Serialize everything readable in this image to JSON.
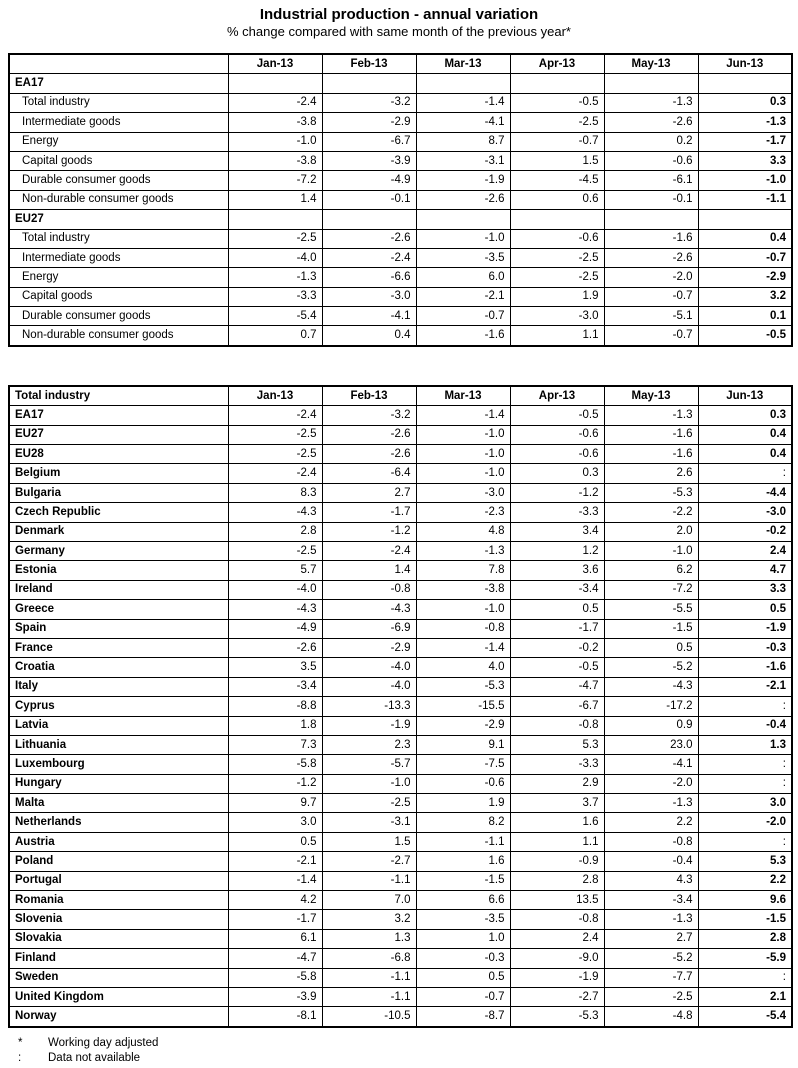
{
  "title": "Industrial production - annual variation",
  "subtitle": "% change compared with same month of the previous year*",
  "months": [
    "Jan-13",
    "Feb-13",
    "Mar-13",
    "Apr-13",
    "May-13",
    "Jun-13"
  ],
  "table1": {
    "sections": [
      {
        "label": "EA17",
        "rows": [
          {
            "label": "Total industry",
            "values": [
              "-2.4",
              "-3.2",
              "-1.4",
              "-0.5",
              "-1.3",
              "0.3"
            ]
          },
          {
            "label": "Intermediate goods",
            "values": [
              "-3.8",
              "-2.9",
              "-4.1",
              "-2.5",
              "-2.6",
              "-1.3"
            ]
          },
          {
            "label": "Energy",
            "values": [
              "-1.0",
              "-6.7",
              "8.7",
              "-0.7",
              "0.2",
              "-1.7"
            ]
          },
          {
            "label": "Capital goods",
            "values": [
              "-3.8",
              "-3.9",
              "-3.1",
              "1.5",
              "-0.6",
              "3.3"
            ]
          },
          {
            "label": "Durable consumer goods",
            "values": [
              "-7.2",
              "-4.9",
              "-1.9",
              "-4.5",
              "-6.1",
              "-1.0"
            ]
          },
          {
            "label": "Non-durable consumer goods",
            "values": [
              "1.4",
              "-0.1",
              "-2.6",
              "0.6",
              "-0.1",
              "-1.1"
            ]
          }
        ]
      },
      {
        "label": "EU27",
        "rows": [
          {
            "label": "Total industry",
            "values": [
              "-2.5",
              "-2.6",
              "-1.0",
              "-0.6",
              "-1.6",
              "0.4"
            ]
          },
          {
            "label": "Intermediate goods",
            "values": [
              "-4.0",
              "-2.4",
              "-3.5",
              "-2.5",
              "-2.6",
              "-0.7"
            ]
          },
          {
            "label": "Energy",
            "values": [
              "-1.3",
              "-6.6",
              "6.0",
              "-2.5",
              "-2.0",
              "-2.9"
            ]
          },
          {
            "label": "Capital goods",
            "values": [
              "-3.3",
              "-3.0",
              "-2.1",
              "1.9",
              "-0.7",
              "3.2"
            ]
          },
          {
            "label": "Durable consumer goods",
            "values": [
              "-5.4",
              "-4.1",
              "-0.7",
              "-3.0",
              "-5.1",
              "0.1"
            ]
          },
          {
            "label": "Non-durable consumer goods",
            "values": [
              "0.7",
              "0.4",
              "-1.6",
              "1.1",
              "-0.7",
              "-0.5"
            ]
          }
        ]
      }
    ]
  },
  "table2": {
    "header_label": "Total industry",
    "rows": [
      {
        "label": "EA17",
        "values": [
          "-2.4",
          "-3.2",
          "-1.4",
          "-0.5",
          "-1.3",
          "0.3"
        ]
      },
      {
        "label": "EU27",
        "values": [
          "-2.5",
          "-2.6",
          "-1.0",
          "-0.6",
          "-1.6",
          "0.4"
        ]
      },
      {
        "label": "EU28",
        "values": [
          "-2.5",
          "-2.6",
          "-1.0",
          "-0.6",
          "-1.6",
          "0.4"
        ]
      },
      {
        "label": "Belgium",
        "values": [
          "-2.4",
          "-6.4",
          "-1.0",
          "0.3",
          "2.6",
          ":"
        ]
      },
      {
        "label": "Bulgaria",
        "values": [
          "8.3",
          "2.7",
          "-3.0",
          "-1.2",
          "-5.3",
          "-4.4"
        ]
      },
      {
        "label": "Czech Republic",
        "values": [
          "-4.3",
          "-1.7",
          "-2.3",
          "-3.3",
          "-2.2",
          "-3.0"
        ]
      },
      {
        "label": "Denmark",
        "values": [
          "2.8",
          "-1.2",
          "4.8",
          "3.4",
          "2.0",
          "-0.2"
        ]
      },
      {
        "label": "Germany",
        "values": [
          "-2.5",
          "-2.4",
          "-1.3",
          "1.2",
          "-1.0",
          "2.4"
        ]
      },
      {
        "label": "Estonia",
        "values": [
          "5.7",
          "1.4",
          "7.8",
          "3.6",
          "6.2",
          "4.7"
        ]
      },
      {
        "label": "Ireland",
        "values": [
          "-4.0",
          "-0.8",
          "-3.8",
          "-3.4",
          "-7.2",
          "3.3"
        ]
      },
      {
        "label": "Greece",
        "values": [
          "-4.3",
          "-4.3",
          "-1.0",
          "0.5",
          "-5.5",
          "0.5"
        ]
      },
      {
        "label": "Spain",
        "values": [
          "-4.9",
          "-6.9",
          "-0.8",
          "-1.7",
          "-1.5",
          "-1.9"
        ]
      },
      {
        "label": "France",
        "values": [
          "-2.6",
          "-2.9",
          "-1.4",
          "-0.2",
          "0.5",
          "-0.3"
        ]
      },
      {
        "label": "Croatia",
        "values": [
          "3.5",
          "-4.0",
          "4.0",
          "-0.5",
          "-5.2",
          "-1.6"
        ]
      },
      {
        "label": "Italy",
        "values": [
          "-3.4",
          "-4.0",
          "-5.3",
          "-4.7",
          "-4.3",
          "-2.1"
        ]
      },
      {
        "label": "Cyprus",
        "values": [
          "-8.8",
          "-13.3",
          "-15.5",
          "-6.7",
          "-17.2",
          ":"
        ]
      },
      {
        "label": "Latvia",
        "values": [
          "1.8",
          "-1.9",
          "-2.9",
          "-0.8",
          "0.9",
          "-0.4"
        ]
      },
      {
        "label": "Lithuania",
        "values": [
          "7.3",
          "2.3",
          "9.1",
          "5.3",
          "23.0",
          "1.3"
        ]
      },
      {
        "label": "Luxembourg",
        "values": [
          "-5.8",
          "-5.7",
          "-7.5",
          "-3.3",
          "-4.1",
          ":"
        ]
      },
      {
        "label": "Hungary",
        "values": [
          "-1.2",
          "-1.0",
          "-0.6",
          "2.9",
          "-2.0",
          ":"
        ]
      },
      {
        "label": "Malta",
        "values": [
          "9.7",
          "-2.5",
          "1.9",
          "3.7",
          "-1.3",
          "3.0"
        ]
      },
      {
        "label": "Netherlands",
        "values": [
          "3.0",
          "-3.1",
          "8.2",
          "1.6",
          "2.2",
          "-2.0"
        ]
      },
      {
        "label": "Austria",
        "values": [
          "0.5",
          "1.5",
          "-1.1",
          "1.1",
          "-0.8",
          ":"
        ]
      },
      {
        "label": "Poland",
        "values": [
          "-2.1",
          "-2.7",
          "1.6",
          "-0.9",
          "-0.4",
          "5.3"
        ]
      },
      {
        "label": "Portugal",
        "values": [
          "-1.4",
          "-1.1",
          "-1.5",
          "2.8",
          "4.3",
          "2.2"
        ]
      },
      {
        "label": "Romania",
        "values": [
          "4.2",
          "7.0",
          "6.6",
          "13.5",
          "-3.4",
          "9.6"
        ]
      },
      {
        "label": "Slovenia",
        "values": [
          "-1.7",
          "3.2",
          "-3.5",
          "-0.8",
          "-1.3",
          "-1.5"
        ]
      },
      {
        "label": "Slovakia",
        "values": [
          "6.1",
          "1.3",
          "1.0",
          "2.4",
          "2.7",
          "2.8"
        ]
      },
      {
        "label": "Finland",
        "values": [
          "-4.7",
          "-6.8",
          "-0.3",
          "-9.0",
          "-5.2",
          "-5.9"
        ]
      },
      {
        "label": "Sweden",
        "values": [
          "-5.8",
          "-1.1",
          "0.5",
          "-1.9",
          "-7.7",
          ":"
        ]
      },
      {
        "label": "United Kingdom",
        "values": [
          "-3.9",
          "-1.1",
          "-0.7",
          "-2.7",
          "-2.5",
          "2.1"
        ]
      },
      {
        "label": "Norway",
        "values": [
          "-8.1",
          "-10.5",
          "-8.7",
          "-5.3",
          "-4.8",
          "-5.4"
        ]
      }
    ]
  },
  "footnotes": [
    {
      "symbol": "*",
      "text": "Working day adjusted"
    },
    {
      "symbol": ":",
      "text": "Data not available"
    }
  ]
}
